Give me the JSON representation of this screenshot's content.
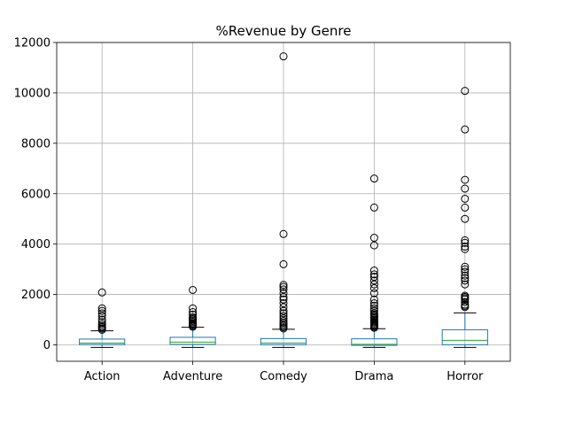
{
  "chart_data": {
    "type": "box",
    "title": "%Revenue by Genre",
    "ylabel": "%",
    "ylim": [
      -650,
      12000
    ],
    "yticks": [
      0,
      2000,
      4000,
      6000,
      8000,
      10000,
      12000
    ],
    "grid": true,
    "categories": [
      "Action",
      "Adventure",
      "Comedy",
      "Drama",
      "Horror"
    ],
    "boxes": [
      {
        "category": "Action",
        "whislo": -100,
        "q1": 10,
        "median": 70,
        "q3": 230,
        "whishi": 560,
        "fliers": [
          600,
          650,
          700,
          750,
          820,
          900,
          1000,
          1150,
          1250,
          1350,
          1450,
          2080
        ]
      },
      {
        "category": "Adventure",
        "whislo": -100,
        "q1": 20,
        "median": 110,
        "q3": 300,
        "whishi": 700,
        "fliers": [
          720,
          760,
          800,
          850,
          900,
          950,
          1000,
          1050,
          1100,
          1200,
          1300,
          1450,
          2180
        ]
      },
      {
        "category": "Comedy",
        "whislo": -100,
        "q1": 5,
        "median": 70,
        "q3": 250,
        "whishi": 620,
        "fliers": [
          650,
          700,
          760,
          820,
          880,
          950,
          1050,
          1150,
          1250,
          1350,
          1500,
          1650,
          1800,
          1900,
          2050,
          2200,
          2300,
          2380,
          3200,
          4400,
          11450
        ]
      },
      {
        "category": "Drama",
        "whislo": -100,
        "q1": -20,
        "median": 20,
        "q3": 240,
        "whishi": 640,
        "fliers": [
          680,
          720,
          760,
          800,
          850,
          900,
          950,
          1000,
          1050,
          1100,
          1150,
          1200,
          1250,
          1350,
          1450,
          1550,
          1650,
          1800,
          2050,
          2250,
          2400,
          2550,
          2700,
          2800,
          2950,
          3950,
          4250,
          5450,
          6600
        ]
      },
      {
        "category": "Horror",
        "whislo": -100,
        "q1": 5,
        "median": 180,
        "q3": 600,
        "whishi": 1270,
        "fliers": [
          1500,
          1550,
          1600,
          1700,
          1800,
          1850,
          1900,
          1950,
          2400,
          2550,
          2650,
          2750,
          2900,
          3000,
          3100,
          3800,
          3900,
          4050,
          4150,
          5000,
          5450,
          5800,
          6200,
          6550,
          8550,
          10080
        ]
      }
    ]
  },
  "colors": {
    "box": "#1f77b4",
    "median": "#2ca02c",
    "whisker": "#1f77b4",
    "flier_edge": "#000000",
    "grid": "#b0b0b0",
    "axes": "#000000"
  }
}
